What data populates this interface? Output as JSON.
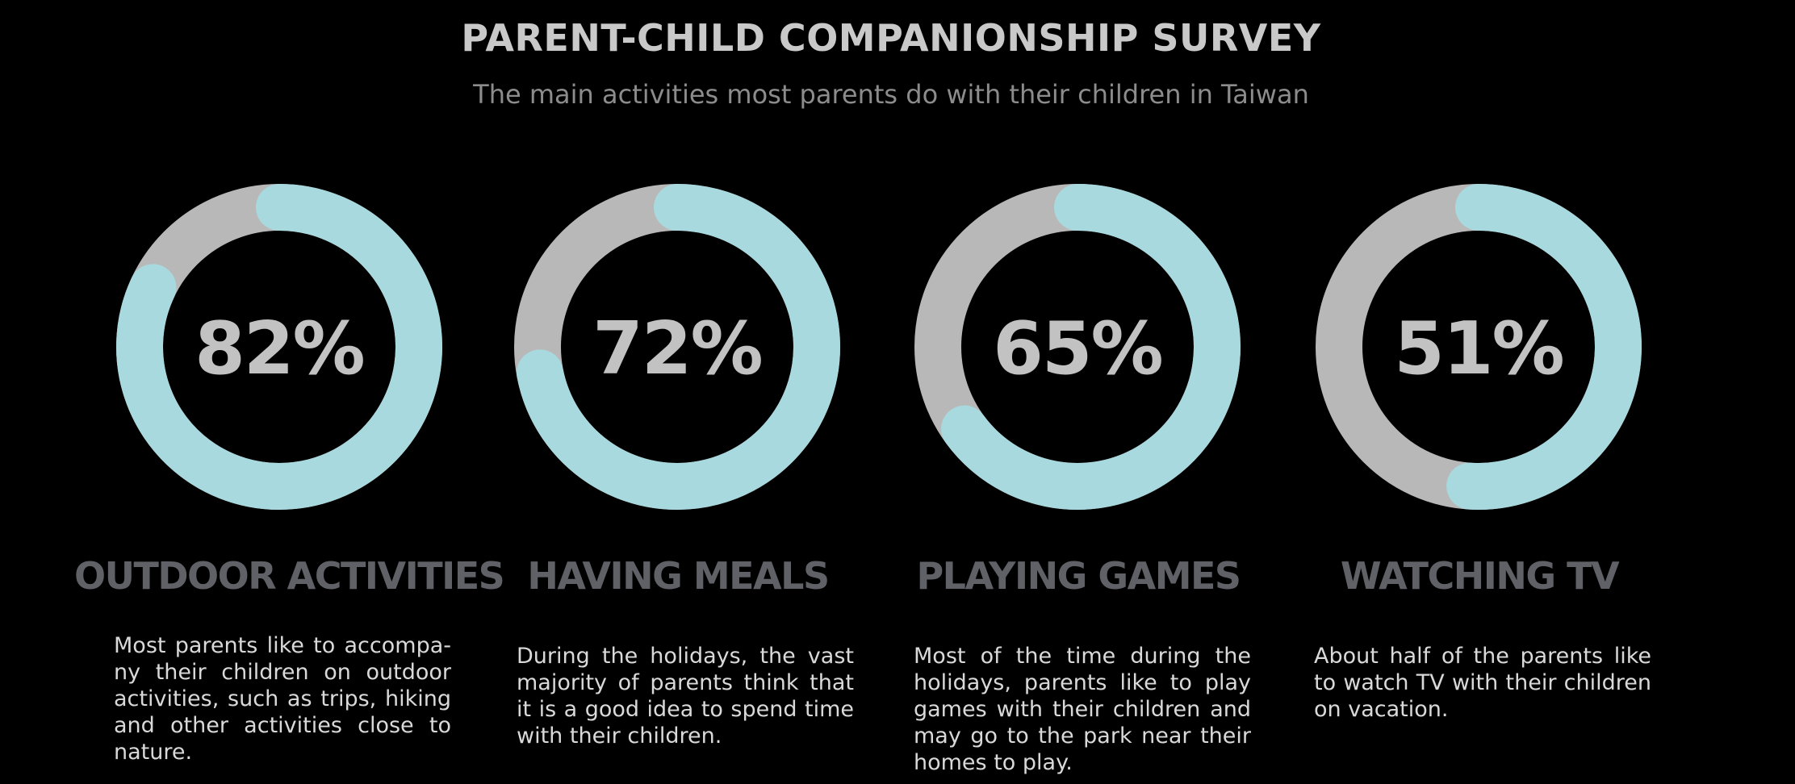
{
  "header": {
    "title": "PARENT-CHILD COMPANIONSHIP SURVEY",
    "subtitle": "The main activities most parents do with their children in Taiwan"
  },
  "colors": {
    "background": "#000000",
    "progress": "#a8d9de",
    "track": "#b8b8b8",
    "percent_text": "#c2c2c2",
    "category_text": "#5f6166",
    "description_text": "#d9d9d9"
  },
  "chart_data": {
    "type": "donut",
    "title": "PARENT-CHILD COMPANIONSHIP SURVEY",
    "subtitle": "The main activities most parents do with their children in Taiwan",
    "unit": "%",
    "categories": [
      "OUTDOOR ACTIVITIES",
      "HAVING MEALS",
      "PLAYING GAMES",
      "WATCHING TV"
    ],
    "values": [
      82,
      72,
      65,
      51
    ],
    "labels": [
      "82%",
      "72%",
      "65%",
      "51%"
    ],
    "descriptions": [
      "Most parents like to accompa-ny their children on outdoor activities, such as trips, hiking and other activities close to nature.",
      "During the holidays, the vast majority of parents think that it is a good idea to spend time with their children.",
      "Most of the time during the holidays, parents like to play games with their children and may go to the park near their homes to play.",
      "About half of the parents like to watch TV with their children on vacation."
    ]
  }
}
